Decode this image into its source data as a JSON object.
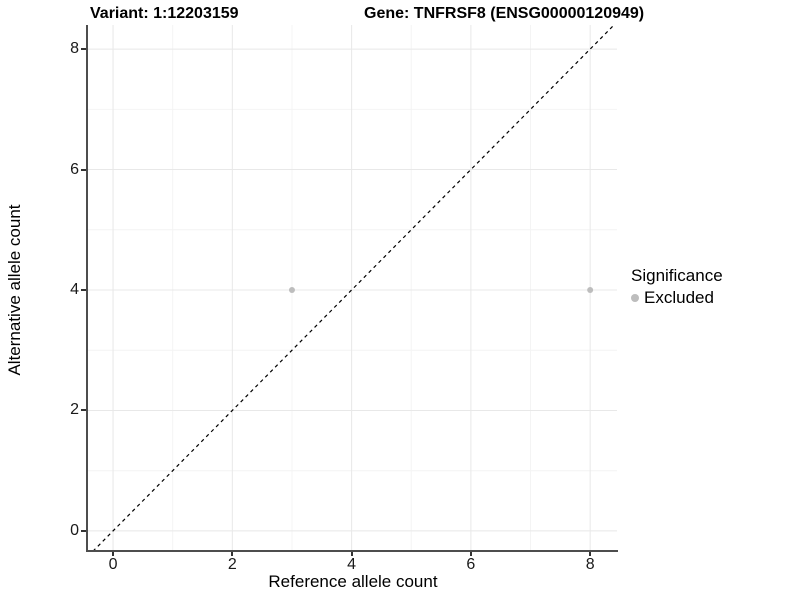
{
  "titles": {
    "variant": "Variant: 1:12203159",
    "gene": "Gene: TNFRSF8 (ENSG00000120949)"
  },
  "axes": {
    "xlabel": "Reference allele count",
    "ylabel": "Alternative allele count"
  },
  "legend": {
    "title": "Significance",
    "entries": [
      {
        "label": "Excluded",
        "color": "#bdbdbd"
      }
    ]
  },
  "colors": {
    "background": "#ffffff",
    "axis_line": "#4d4d4d",
    "grid_major": "#e8e8e8",
    "grid_minor": "#f4f4f4",
    "reference_line": "#000000",
    "point": "#bdbdbd",
    "text": "#000000"
  },
  "chart_data": {
    "type": "scatter",
    "title": "Variant: 1:12203159",
    "subtitle": "Gene: TNFRSF8 (ENSG00000120949)",
    "xlabel": "Reference allele count",
    "ylabel": "Alternative allele count",
    "xlim": [
      -0.42,
      8.45
    ],
    "ylim": [
      -0.35,
      8.4
    ],
    "xticks": [
      0,
      2,
      4,
      6,
      8
    ],
    "yticks": [
      0,
      2,
      4,
      6,
      8
    ],
    "minor_xticks": [
      1,
      3,
      5,
      7
    ],
    "minor_yticks": [
      1,
      3,
      5,
      7
    ],
    "grid": true,
    "legend_position": "right",
    "reference_line": {
      "slope": 1,
      "intercept": 0,
      "style": "dashed",
      "color": "#000000"
    },
    "series": [
      {
        "name": "Excluded",
        "color": "#bdbdbd",
        "marker": "circle",
        "point_radius": 3,
        "points": [
          [
            3,
            4
          ],
          [
            8,
            4
          ]
        ]
      }
    ]
  }
}
